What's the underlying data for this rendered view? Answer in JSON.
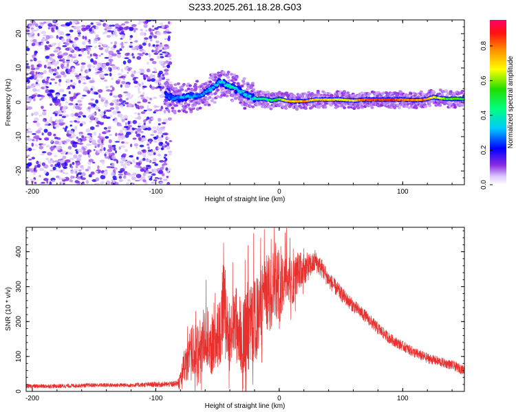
{
  "title": "S233.2025.261.18.28.G03",
  "chart_data": [
    {
      "type": "heatmap",
      "title": "S233.2025.261.18.28.G03",
      "xlabel": "Height of straight line (km)",
      "ylabel": "Frequency (Hz)",
      "xlim": [
        -205,
        150
      ],
      "ylim": [
        -24,
        24
      ],
      "xticks": [
        -200,
        -100,
        0,
        100
      ],
      "yticks": [
        -20,
        -10,
        0,
        10,
        20
      ],
      "noise_region": {
        "x_from": -205,
        "x_to": -88,
        "description_value": "scattered low-amplitude energy"
      },
      "signal_track": {
        "x": [
          -92,
          -85,
          -75,
          -65,
          -55,
          -48,
          -42,
          -36,
          -30,
          -24,
          -18,
          -12,
          -6,
          0,
          5,
          10,
          20,
          30,
          40,
          50,
          60,
          70,
          80,
          90,
          100,
          110,
          118,
          125,
          135,
          150
        ],
        "freq": [
          2,
          1,
          1.5,
          2,
          4,
          6,
          5,
          4,
          3,
          1.5,
          1,
          1,
          0.5,
          1,
          0.5,
          0.3,
          0.3,
          0.8,
          0.8,
          0.8,
          0.5,
          0.8,
          0.8,
          0.8,
          0.8,
          0.6,
          0.8,
          1.5,
          1,
          1
        ],
        "amplitude": [
          0.25,
          0.3,
          0.35,
          0.3,
          0.3,
          0.35,
          0.4,
          0.4,
          0.35,
          0.35,
          0.4,
          0.45,
          0.5,
          0.6,
          0.7,
          0.75,
          0.8,
          0.75,
          0.75,
          0.7,
          0.75,
          0.85,
          0.9,
          0.9,
          0.85,
          0.8,
          0.85,
          0.7,
          0.6,
          0.55
        ]
      },
      "colorbar": {
        "label": "Normalized spectral amplitude",
        "range": [
          0.0,
          0.95
        ],
        "ticks": [
          "0.0",
          "0.2",
          "0.4",
          "0.6",
          "0.8"
        ]
      }
    },
    {
      "type": "line",
      "xlabel": "Height of straight line (km)",
      "ylabel": "SNR (10 * v/v)",
      "xlim": [
        -205,
        150
      ],
      "ylim": [
        0,
        470
      ],
      "xticks": [
        -200,
        -100,
        0,
        100
      ],
      "yticks": [
        0,
        100,
        200,
        300,
        400
      ],
      "color": "#e8302e",
      "series": [
        {
          "name": "SNR",
          "x": [
            -205,
            -180,
            -150,
            -120,
            -100,
            -90,
            -82,
            -78,
            -74,
            -70,
            -66,
            -60,
            -54,
            -48,
            -45,
            -40,
            -35,
            -30,
            -25,
            -20,
            -15,
            -12,
            -8,
            -4,
            0,
            5,
            10,
            15,
            20,
            25,
            30,
            35,
            40,
            50,
            60,
            70,
            80,
            90,
            100,
            110,
            120,
            130,
            140,
            150
          ],
          "y": [
            15,
            15,
            18,
            18,
            20,
            20,
            22,
            60,
            90,
            120,
            110,
            150,
            130,
            170,
            260,
            150,
            200,
            150,
            180,
            200,
            220,
            300,
            270,
            320,
            300,
            330,
            310,
            340,
            350,
            360,
            370,
            350,
            320,
            280,
            245,
            215,
            180,
            150,
            130,
            110,
            95,
            85,
            75,
            60
          ],
          "spread": [
            6,
            6,
            6,
            6,
            8,
            8,
            10,
            40,
            60,
            80,
            80,
            90,
            90,
            100,
            130,
            100,
            110,
            110,
            120,
            120,
            120,
            100,
            120,
            100,
            110,
            70,
            70,
            60,
            50,
            35,
            30,
            28,
            25,
            22,
            20,
            18,
            18,
            16,
            15,
            15,
            15,
            14,
            14,
            14
          ],
          "peaks": [
            {
              "x": -45,
              "y": 425
            },
            {
              "x": -15,
              "y": 440
            },
            {
              "x": -12,
              "y": 465
            },
            {
              "x": -4,
              "y": 470
            },
            {
              "x": 6,
              "y": 468
            },
            {
              "x": 20,
              "y": 410
            },
            {
              "x": 29,
              "y": 405
            }
          ]
        }
      ]
    }
  ]
}
